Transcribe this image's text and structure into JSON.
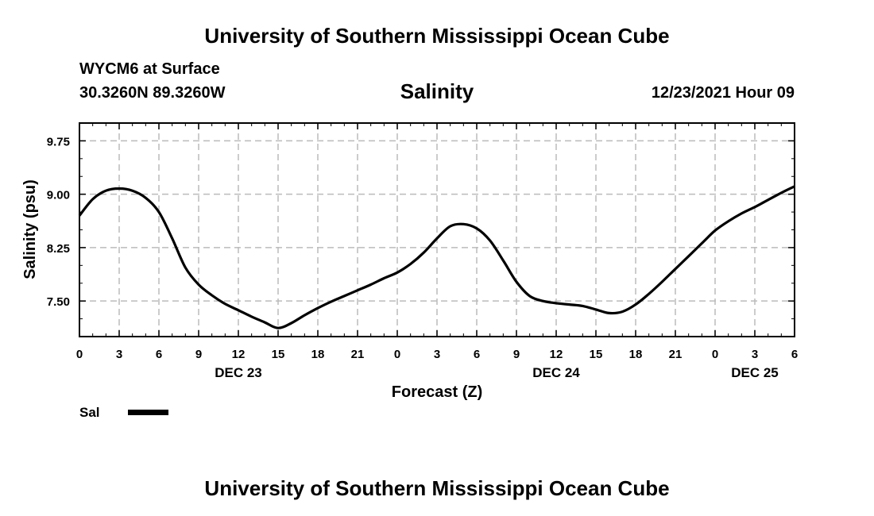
{
  "header": {
    "title": "University of Southern Mississippi Ocean Cube",
    "station": "WYCM6 at Surface",
    "coords": "30.3260N  89.3260W",
    "plot_title": "Salinity",
    "datetime": "12/23/2021 Hour 09"
  },
  "footer": {
    "title": "University of Southern Mississippi Ocean Cube"
  },
  "legend": {
    "label": "Sal"
  },
  "chart_data": {
    "type": "line",
    "title": "Salinity",
    "xlabel": "Forecast (Z)",
    "ylabel": "Salinity (psu)",
    "ylim": [
      7.0,
      10.0
    ],
    "yticks": [
      7.5,
      8.25,
      9.0,
      9.75
    ],
    "ytick_labels": [
      "7.50",
      "8.25",
      "9.00",
      "9.75"
    ],
    "xlim": [
      0,
      54
    ],
    "xtick_values": [
      0,
      3,
      6,
      9,
      12,
      15,
      18,
      21,
      24,
      27,
      30,
      33,
      36,
      39,
      42,
      45,
      48,
      51,
      54
    ],
    "xtick_labels": [
      "0",
      "3",
      "6",
      "9",
      "12",
      "15",
      "18",
      "21",
      "0",
      "3",
      "6",
      "9",
      "12",
      "15",
      "18",
      "21",
      "0",
      "3",
      "6"
    ],
    "date_labels": [
      {
        "hour": 12,
        "label": "DEC 23"
      },
      {
        "hour": 36,
        "label": "DEC 24"
      },
      {
        "hour": 51,
        "label": "DEC 25"
      }
    ],
    "grid": true,
    "series": [
      {
        "name": "Sal",
        "color": "#000000",
        "x": [
          0,
          1,
          2,
          3,
          4,
          5,
          6,
          7,
          8,
          9,
          10,
          11,
          12,
          13,
          14,
          15,
          16,
          17,
          18,
          19,
          20,
          21,
          22,
          23,
          24,
          25,
          26,
          27,
          28,
          29,
          30,
          31,
          32,
          33,
          34,
          35,
          36,
          37,
          38,
          39,
          40,
          41,
          42,
          43,
          44,
          45,
          46,
          47,
          48,
          49,
          50,
          51,
          52,
          53,
          54
        ],
        "values": [
          8.7,
          8.93,
          9.05,
          9.08,
          9.05,
          8.95,
          8.75,
          8.38,
          7.97,
          7.73,
          7.58,
          7.46,
          7.37,
          7.28,
          7.2,
          7.12,
          7.19,
          7.3,
          7.4,
          7.49,
          7.57,
          7.65,
          7.73,
          7.82,
          7.9,
          8.02,
          8.18,
          8.38,
          8.55,
          8.58,
          8.52,
          8.35,
          8.07,
          7.77,
          7.57,
          7.5,
          7.47,
          7.45,
          7.43,
          7.38,
          7.33,
          7.35,
          7.45,
          7.6,
          7.77,
          7.95,
          8.13,
          8.31,
          8.49,
          8.62,
          8.73,
          8.82,
          8.92,
          9.02,
          9.11
        ]
      }
    ]
  }
}
